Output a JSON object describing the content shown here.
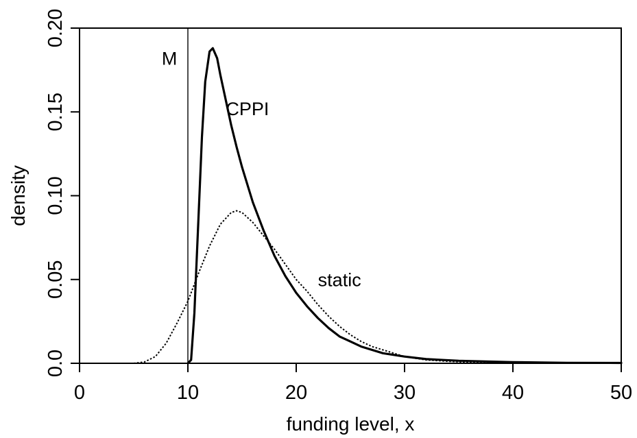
{
  "chart_data": {
    "type": "line",
    "xlabel": "funding level, x",
    "ylabel": "density",
    "xlim": [
      0,
      50
    ],
    "ylim": [
      0,
      0.2
    ],
    "x_ticks": [
      "0",
      "10",
      "20",
      "30",
      "40",
      "50"
    ],
    "y_ticks": [
      "0.0",
      "0.05",
      "0.10",
      "0.15",
      "0.20"
    ],
    "grid": false,
    "legend": "none",
    "reference_line": {
      "label": "M",
      "x": 10
    },
    "series": [
      {
        "label": "CPPI",
        "style": "solid",
        "x": [
          10.0,
          10.3,
          10.6,
          11.0,
          11.3,
          11.6,
          12.0,
          12.3,
          12.7,
          13.0,
          13.5,
          14.0,
          14.5,
          15.0,
          16.0,
          17.0,
          18.0,
          19.0,
          20.0,
          21.0,
          22.0,
          23.0,
          24.0,
          25.0,
          26.0,
          28.0,
          30.0,
          32.0,
          35.0,
          40.0,
          45.0,
          50.0
        ],
        "y": [
          0.0,
          0.002,
          0.03,
          0.09,
          0.135,
          0.168,
          0.186,
          0.188,
          0.182,
          0.172,
          0.157,
          0.142,
          0.129,
          0.117,
          0.096,
          0.079,
          0.064,
          0.052,
          0.042,
          0.034,
          0.027,
          0.021,
          0.016,
          0.013,
          0.01,
          0.006,
          0.004,
          0.0025,
          0.0015,
          0.0007,
          0.0003,
          0.0002
        ]
      },
      {
        "label": "static",
        "style": "dotted",
        "x": [
          5.0,
          6.0,
          7.0,
          8.0,
          9.0,
          10.0,
          11.0,
          12.0,
          13.0,
          14.0,
          14.5,
          15.0,
          16.0,
          17.0,
          18.0,
          19.0,
          20.0,
          21.0,
          22.0,
          23.0,
          24.0,
          25.0,
          26.0,
          27.0,
          28.0,
          30.0,
          32.0,
          34.0,
          36.0,
          38.0,
          40.0,
          45.0,
          50.0
        ],
        "y": [
          0.0,
          0.0008,
          0.004,
          0.012,
          0.024,
          0.037,
          0.054,
          0.07,
          0.083,
          0.09,
          0.091,
          0.09,
          0.084,
          0.076,
          0.068,
          0.059,
          0.05,
          0.043,
          0.035,
          0.028,
          0.022,
          0.017,
          0.013,
          0.01,
          0.008,
          0.004,
          0.002,
          0.0012,
          0.0006,
          0.0003,
          0.0002,
          0.0001,
          0.0001
        ]
      }
    ],
    "annotations": [
      {
        "text": "M",
        "x": 8.3,
        "y": 0.181
      },
      {
        "text": "CPPI",
        "x": 15.5,
        "y": 0.151
      },
      {
        "text": "static",
        "x": 24.0,
        "y": 0.049
      }
    ]
  }
}
